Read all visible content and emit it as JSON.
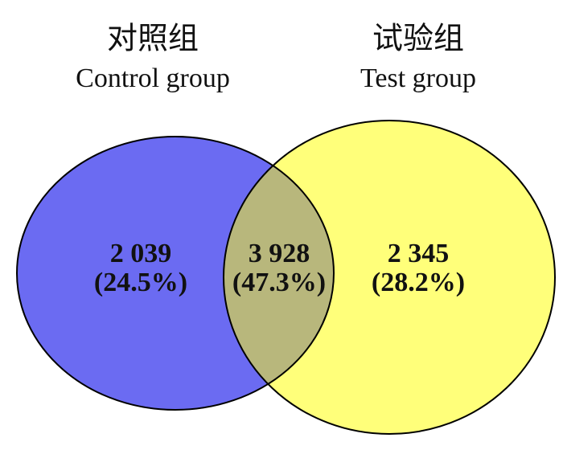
{
  "chart_data": {
    "type": "venn",
    "sets": [
      {
        "name": "对照组",
        "name_en": "Control group",
        "color": "#6b6bf2"
      },
      {
        "name": "试验组",
        "name_en": "Test group",
        "color": "#ffff7a"
      }
    ],
    "overlap_color": "#b8b77c",
    "values": [
      2039,
      3928,
      2345
    ],
    "value_labels": [
      "2 039",
      "3 928",
      "2 345"
    ],
    "percents": [
      24.5,
      47.3,
      28.2
    ],
    "percent_labels": [
      "(24.5%)",
      "(47.3%)",
      "(28.2%)"
    ]
  }
}
